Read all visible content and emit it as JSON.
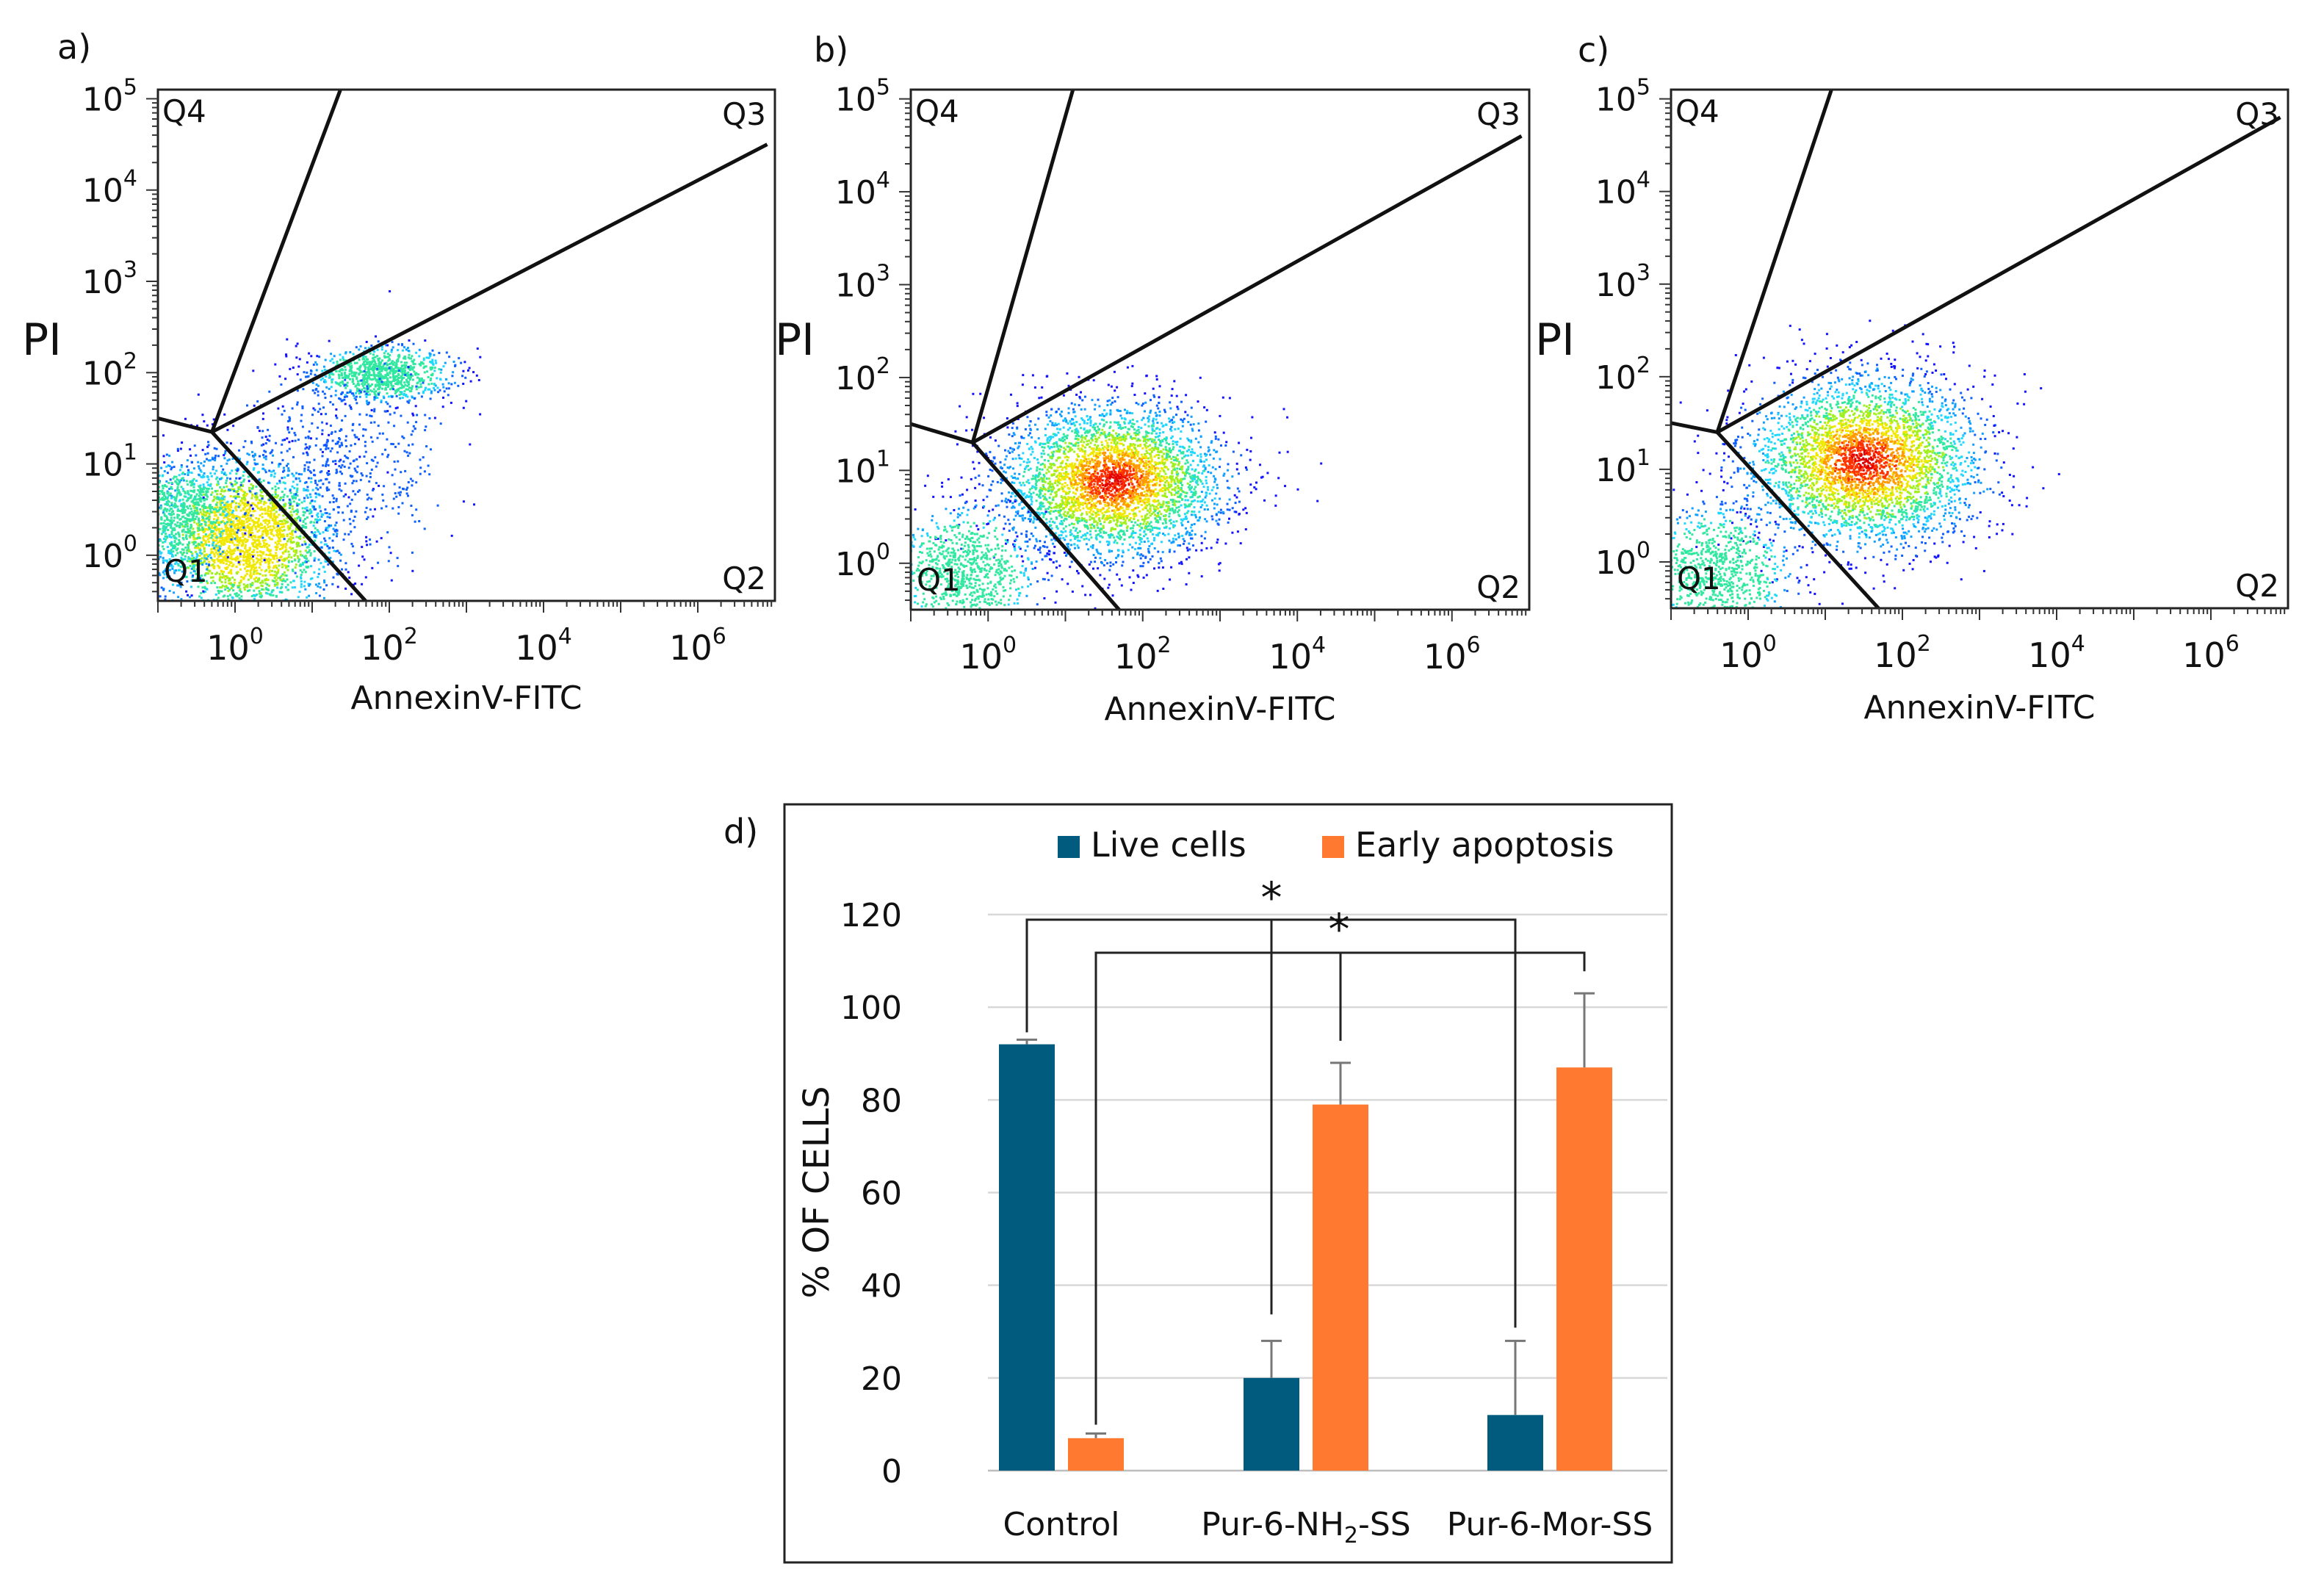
{
  "figure": {
    "panel_labels": [
      "a)",
      "b)",
      "c)",
      "d)"
    ]
  },
  "chart_data": [
    {
      "type": "scatter",
      "subtype": "flow-cytometry-density",
      "panel": "a)",
      "xlabel": "AnnexinV-FITC",
      "ylabel": "PI",
      "x_ticks": [
        {
          "base": "10",
          "exp": "0"
        },
        {
          "base": "10",
          "exp": "2"
        },
        {
          "base": "10",
          "exp": "4"
        },
        {
          "base": "10",
          "exp": "6"
        }
      ],
      "y_ticks": [
        {
          "base": "10",
          "exp": "0"
        },
        {
          "base": "10",
          "exp": "1"
        },
        {
          "base": "10",
          "exp": "2"
        },
        {
          "base": "10",
          "exp": "3"
        },
        {
          "base": "10",
          "exp": "4"
        },
        {
          "base": "10",
          "exp": "5"
        }
      ],
      "xlim_log10": [
        -1,
        7
      ],
      "ylim_log10": [
        -0.5,
        5.1
      ],
      "quadrants": [
        "Q1",
        "Q2",
        "Q3",
        "Q4"
      ],
      "gate_center_log10": [
        -0.3,
        1.35
      ],
      "gate_ends_log10": {
        "q4_top": [
          1.5,
          5.4
        ],
        "q3_right": [
          6.9,
          4.5
        ],
        "q2_bottom": [
          1.8,
          -0.6
        ],
        "q1_left": [
          -1.0,
          1.5
        ]
      },
      "clusters": [
        {
          "center_log10": [
            0.1,
            0.2
          ],
          "spread": [
            0.6,
            0.45
          ],
          "count": 2600,
          "peak": "#e8e000"
        },
        {
          "center_log10": [
            -0.7,
            0.45
          ],
          "spread": [
            0.35,
            0.3
          ],
          "count": 700,
          "peak": "#20c8e0"
        },
        {
          "center_log10": [
            1.9,
            2.0
          ],
          "spread": [
            0.45,
            0.15
          ],
          "count": 900,
          "peak": "#30d0ff"
        },
        {
          "center_log10": [
            1.4,
            1.0
          ],
          "spread": [
            0.6,
            0.55
          ],
          "count": 500,
          "peak": "#1040ff"
        }
      ]
    },
    {
      "type": "scatter",
      "subtype": "flow-cytometry-density",
      "panel": "b)",
      "xlabel": "AnnexinV-FITC",
      "ylabel": "PI",
      "x_ticks": [
        {
          "base": "10",
          "exp": "0"
        },
        {
          "base": "10",
          "exp": "2"
        },
        {
          "base": "10",
          "exp": "4"
        },
        {
          "base": "10",
          "exp": "6"
        }
      ],
      "y_ticks": [
        {
          "base": "10",
          "exp": "0"
        },
        {
          "base": "10",
          "exp": "1"
        },
        {
          "base": "10",
          "exp": "2"
        },
        {
          "base": "10",
          "exp": "3"
        },
        {
          "base": "10",
          "exp": "4"
        },
        {
          "base": "10",
          "exp": "5"
        }
      ],
      "xlim_log10": [
        -1,
        7
      ],
      "ylim_log10": [
        -0.5,
        5.1
      ],
      "quadrants": [
        "Q1",
        "Q2",
        "Q3",
        "Q4"
      ],
      "gate_center_log10": [
        -0.2,
        1.3
      ],
      "gate_ends_log10": {
        "q4_top": [
          1.2,
          5.4
        ],
        "q3_right": [
          6.9,
          4.6
        ],
        "q2_bottom": [
          1.8,
          -0.6
        ],
        "q1_left": [
          -1.0,
          1.5
        ]
      },
      "clusters": [
        {
          "center_log10": [
            1.6,
            0.9
          ],
          "spread": [
            0.7,
            0.4
          ],
          "count": 3600,
          "peak": "#e02010"
        },
        {
          "center_log10": [
            -0.3,
            -0.1
          ],
          "spread": [
            0.45,
            0.35
          ],
          "count": 900,
          "peak": "#20c0ff"
        }
      ]
    },
    {
      "type": "scatter",
      "subtype": "flow-cytometry-density",
      "panel": "c)",
      "xlabel": "AnnexinV-FITC",
      "ylabel": "PI",
      "x_ticks": [
        {
          "base": "10",
          "exp": "0"
        },
        {
          "base": "10",
          "exp": "2"
        },
        {
          "base": "10",
          "exp": "4"
        },
        {
          "base": "10",
          "exp": "6"
        }
      ],
      "y_ticks": [
        {
          "base": "10",
          "exp": "0"
        },
        {
          "base": "10",
          "exp": "1"
        },
        {
          "base": "10",
          "exp": "2"
        },
        {
          "base": "10",
          "exp": "3"
        },
        {
          "base": "10",
          "exp": "4"
        },
        {
          "base": "10",
          "exp": "5"
        }
      ],
      "xlim_log10": [
        -1,
        7
      ],
      "ylim_log10": [
        -0.5,
        5.1
      ],
      "quadrants": [
        "Q1",
        "Q2",
        "Q3",
        "Q4"
      ],
      "gate_center_log10": [
        -0.4,
        1.4
      ],
      "gate_ends_log10": {
        "q4_top": [
          1.2,
          5.4
        ],
        "q3_right": [
          6.9,
          4.8
        ],
        "q2_bottom": [
          1.8,
          -0.6
        ],
        "q1_left": [
          -1.0,
          1.5
        ]
      },
      "clusters": [
        {
          "center_log10": [
            1.5,
            1.1
          ],
          "spread": [
            0.75,
            0.45
          ],
          "count": 3600,
          "peak": "#e02010"
        },
        {
          "center_log10": [
            -0.4,
            -0.1
          ],
          "spread": [
            0.45,
            0.35
          ],
          "count": 900,
          "peak": "#20c0ff"
        }
      ]
    },
    {
      "type": "bar",
      "panel": "d)",
      "title": "",
      "xlabel": "",
      "ylabel": "% OF CELLS",
      "categories": [
        "Control",
        "Pur-6-NH₂-SS",
        "Pur-6-Mor-SS"
      ],
      "series": [
        {
          "name": "Live cells",
          "color": "#005b7f",
          "values": [
            92,
            20,
            12
          ],
          "errors": [
            1,
            8,
            16
          ]
        },
        {
          "name": "Early apoptosis",
          "color": "#ff7a30",
          "values": [
            7,
            79,
            87
          ],
          "errors": [
            1,
            9,
            16
          ]
        }
      ],
      "ylim": [
        0,
        120
      ],
      "yticks": [
        0,
        20,
        40,
        60,
        80,
        100,
        120
      ],
      "grid": true,
      "legend": "top",
      "significance": [
        {
          "label": "*",
          "from": "Control / Live cells",
          "to": "Pur-6-Mor-SS / Live cells",
          "via": "Pur-6-NH₂-SS / Live cells"
        },
        {
          "label": "*",
          "from": "Control / Early apoptosis",
          "to": "Pur-6-Mor-SS / Early apoptosis",
          "via": "Pur-6-NH₂-SS / Early apoptosis"
        }
      ]
    }
  ]
}
